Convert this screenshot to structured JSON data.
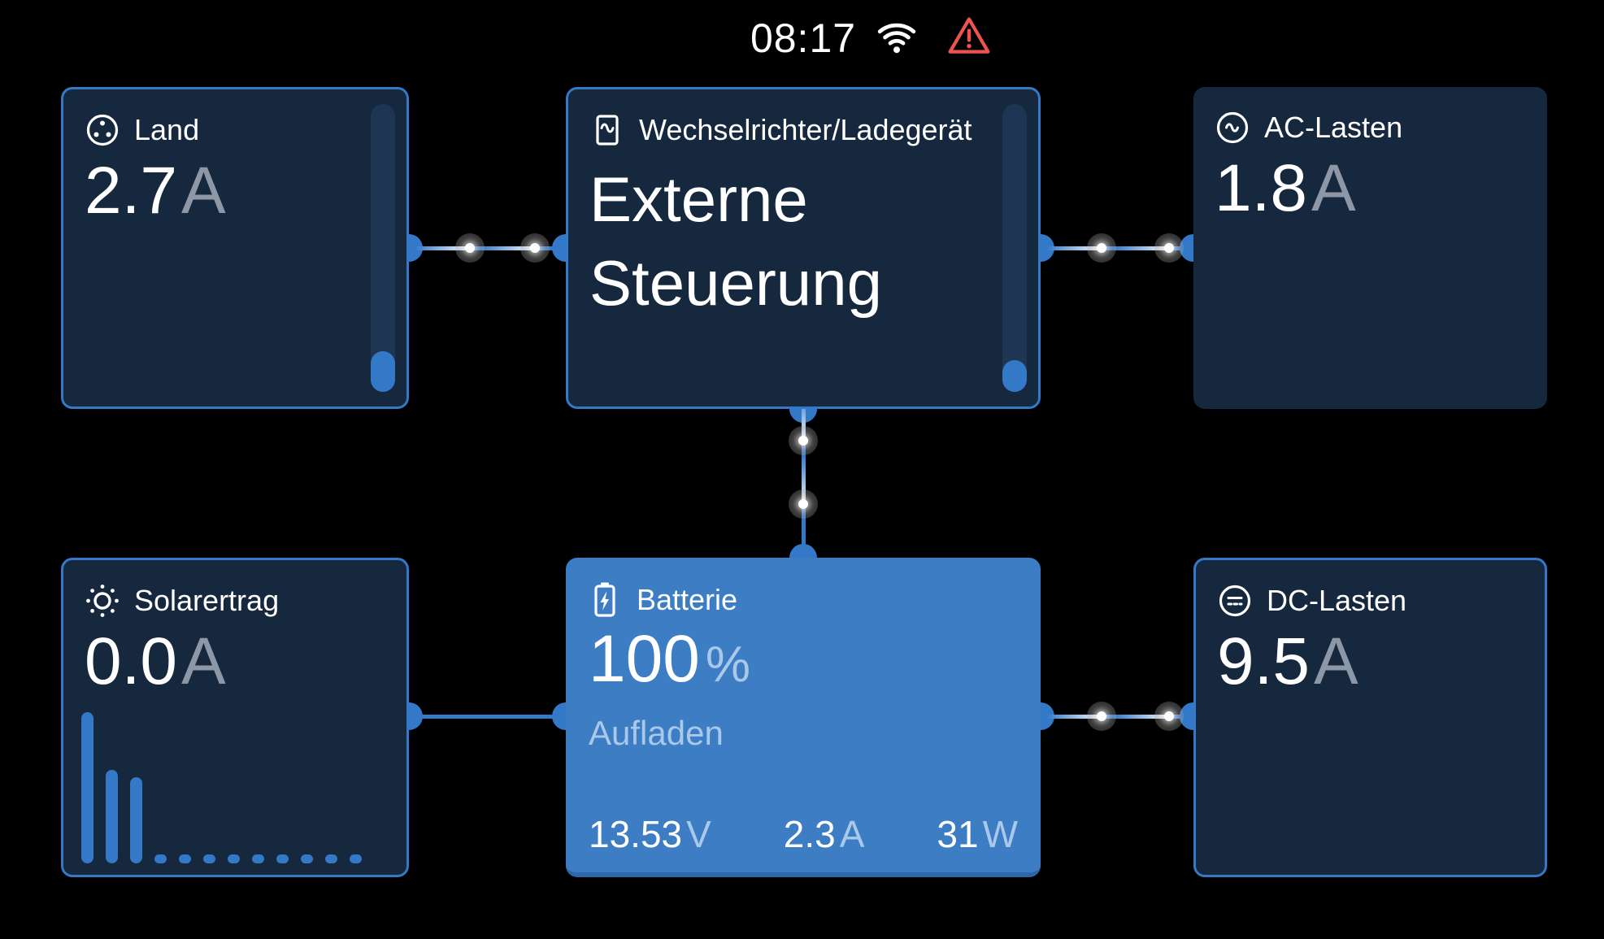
{
  "status_bar": {
    "time": "08:17"
  },
  "colors": {
    "accent_blue": "#3478C8",
    "card_background": "#16283E",
    "battery_card_background": "#3C7DC4",
    "unit_gray": "#8D97A5",
    "battery_secondary": "#A9C8EA",
    "alarm_red": "#EF5350"
  },
  "cards": {
    "grid": {
      "title": "Land",
      "value": "2.7",
      "unit": "A",
      "gauge_pct": 14
    },
    "inverter": {
      "title": "Wechselrichter/Ladegerät",
      "mode": "Externe Steuerung",
      "gauge_pct": 11
    },
    "ac_loads": {
      "title": "AC-Lasten",
      "value": "1.8",
      "unit": "A"
    },
    "solar": {
      "title": "Solarertrag",
      "value": "0.0",
      "unit": "A",
      "history_pct": [
        100,
        62,
        57,
        6,
        6,
        6,
        6,
        6,
        6,
        6,
        6,
        6
      ]
    },
    "battery": {
      "title": "Batterie",
      "soc": "100",
      "soc_unit": "%",
      "state": "Aufladen",
      "voltage": "13.53",
      "voltage_unit": "V",
      "current": "2.3",
      "current_unit": "A",
      "power": "31",
      "power_unit": "W"
    },
    "dc_loads": {
      "title": "DC-Lasten",
      "value": "9.5",
      "unit": "A"
    }
  }
}
